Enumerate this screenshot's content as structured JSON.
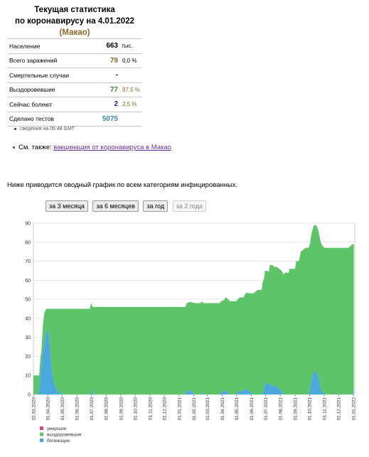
{
  "header": {
    "line1": "Текущая статистика",
    "line2": "по коронавирусу на 4.01.2022",
    "region": "(Макао)"
  },
  "stats": [
    {
      "label": "Население",
      "value": "663",
      "unit": "тыс.",
      "pct": "",
      "color": "#000000"
    },
    {
      "label": "Всего заражений",
      "value": "79",
      "unit": "",
      "pct": "0,0 %",
      "color": "#8a6a2a"
    },
    {
      "label": "Смертельные случаи",
      "value": "-",
      "unit": "",
      "pct": "",
      "color": "#000000"
    },
    {
      "label": "Выздоровевшие",
      "value": "77",
      "unit": "",
      "pct": "97,5 %",
      "color": "#3a8a3a"
    },
    {
      "label": "Сейчас болеют",
      "value": "2",
      "unit": "",
      "pct": "2,5 %",
      "color": "#1a1a8a"
    },
    {
      "label": "Сделано тестов",
      "value": "5075",
      "unit": "",
      "pct": "",
      "color": "#3a8aaa"
    }
  ],
  "note": "сведения на 06:48 GMT",
  "see_also": {
    "prefix": "См. также:",
    "link": "вакцинация от коронавируса в Макао"
  },
  "intro": "Ниже приводится оводный график по всем категориям инфицированных.",
  "buttons": [
    {
      "label": "за 3 месяца",
      "enabled": true
    },
    {
      "label": "за 6 месяцев",
      "enabled": true
    },
    {
      "label": "за год",
      "enabled": true
    },
    {
      "label": "за 2 года",
      "enabled": false
    }
  ],
  "chart_data": {
    "type": "area",
    "stacked": true,
    "ylim": [
      0,
      90
    ],
    "yticks": [
      0,
      10,
      20,
      30,
      40,
      50,
      60,
      70,
      80,
      90
    ],
    "grid": true,
    "xlim": [
      "2020-03-02",
      "2022-01-04"
    ],
    "x_tick_labels": [
      "02.03.2020",
      "01.04.2020",
      "01.05.2020",
      "01.06.2020",
      "01.07.2020",
      "01.08.2020",
      "01.09.2020",
      "01.10.2020",
      "01.11.2020",
      "01.12.2020",
      "01.01.2021",
      "01.02.2021",
      "01.03.2021",
      "01.04.2021",
      "01.05.2021",
      "01.06.2021",
      "01.07.2021",
      "01.08.2021",
      "01.09.2021",
      "01.10.2021",
      "01.11.2021",
      "01.12.2021",
      "01.01.2022"
    ],
    "legend": [
      {
        "name": "умершие",
        "color": "#d0468a"
      },
      {
        "name": "выздоровевшие",
        "color": "#5ec46a"
      },
      {
        "name": "болеющие",
        "color": "#4aa8dc"
      }
    ],
    "series": [
      {
        "name": "умершие",
        "values": [
          [
            0,
            0
          ],
          [
            671,
            0
          ]
        ]
      },
      {
        "name": "болеющие",
        "values": [
          [
            0,
            0
          ],
          [
            10,
            0
          ],
          [
            12,
            3
          ],
          [
            14,
            8
          ],
          [
            17,
            16
          ],
          [
            20,
            22
          ],
          [
            23,
            27
          ],
          [
            25,
            30
          ],
          [
            27,
            33
          ],
          [
            30,
            34
          ],
          [
            31,
            34
          ],
          [
            33,
            30
          ],
          [
            36,
            20
          ],
          [
            39,
            11
          ],
          [
            42,
            7
          ],
          [
            46,
            4
          ],
          [
            50,
            2
          ],
          [
            55,
            1
          ],
          [
            60,
            0
          ],
          [
            118,
            0
          ],
          [
            121,
            2
          ],
          [
            124,
            0
          ],
          [
            318,
            0
          ],
          [
            321,
            2
          ],
          [
            327,
            2
          ],
          [
            333,
            1
          ],
          [
            338,
            0
          ],
          [
            350,
            0
          ],
          [
            353,
            1
          ],
          [
            356,
            0
          ],
          [
            390,
            0
          ],
          [
            393,
            1
          ],
          [
            402,
            2
          ],
          [
            408,
            1
          ],
          [
            411,
            0
          ],
          [
            425,
            0
          ],
          [
            428,
            1
          ],
          [
            432,
            2
          ],
          [
            440,
            2
          ],
          [
            446,
            3
          ],
          [
            451,
            2
          ],
          [
            456,
            1
          ],
          [
            460,
            0
          ],
          [
            478,
            0
          ],
          [
            480,
            1
          ],
          [
            483,
            2
          ],
          [
            485,
            6
          ],
          [
            490,
            6
          ],
          [
            495,
            5
          ],
          [
            500,
            5
          ],
          [
            505,
            4
          ],
          [
            510,
            4
          ],
          [
            515,
            3
          ],
          [
            520,
            2
          ],
          [
            522,
            1
          ],
          [
            524,
            0
          ],
          [
            576,
            0
          ],
          [
            579,
            2
          ],
          [
            582,
            7
          ],
          [
            585,
            10
          ],
          [
            588,
            12
          ],
          [
            591,
            12
          ],
          [
            594,
            11
          ],
          [
            597,
            9
          ],
          [
            600,
            5
          ],
          [
            603,
            2
          ],
          [
            606,
            1
          ],
          [
            610,
            0
          ],
          [
            668,
            0
          ],
          [
            670,
            2
          ],
          [
            671,
            2
          ]
        ]
      },
      {
        "name": "выздоровевшие",
        "values": [
          [
            0,
            10
          ],
          [
            10,
            10
          ],
          [
            12,
            7
          ],
          [
            14,
            9
          ],
          [
            17,
            8
          ],
          [
            20,
            15
          ],
          [
            23,
            16
          ],
          [
            25,
            14
          ],
          [
            27,
            12
          ],
          [
            30,
            11
          ],
          [
            31,
            11
          ],
          [
            33,
            15
          ],
          [
            36,
            25
          ],
          [
            39,
            34
          ],
          [
            42,
            38
          ],
          [
            46,
            41
          ],
          [
            50,
            43
          ],
          [
            55,
            44
          ],
          [
            60,
            45
          ],
          [
            118,
            45
          ],
          [
            120,
            46
          ],
          [
            322,
            46
          ],
          [
            330,
            47
          ],
          [
            338,
            48
          ],
          [
            400,
            48
          ],
          [
            402,
            49
          ],
          [
            440,
            49
          ],
          [
            443,
            50
          ],
          [
            450,
            51
          ],
          [
            455,
            52
          ],
          [
            460,
            53
          ],
          [
            465,
            54
          ],
          [
            470,
            55
          ],
          [
            478,
            55
          ],
          [
            480,
            58
          ],
          [
            483,
            59
          ],
          [
            493,
            59
          ],
          [
            495,
            63
          ],
          [
            525,
            63
          ],
          [
            526,
            64
          ],
          [
            535,
            64
          ],
          [
            536,
            66
          ],
          [
            548,
            66
          ],
          [
            550,
            70
          ],
          [
            556,
            70
          ],
          [
            560,
            75
          ],
          [
            565,
            76
          ],
          [
            570,
            77
          ],
          [
            600,
            77
          ],
          [
            610,
            77
          ],
          [
            660,
            77
          ],
          [
            668,
            79
          ],
          [
            670,
            77
          ],
          [
            671,
            77
          ]
        ]
      }
    ]
  }
}
